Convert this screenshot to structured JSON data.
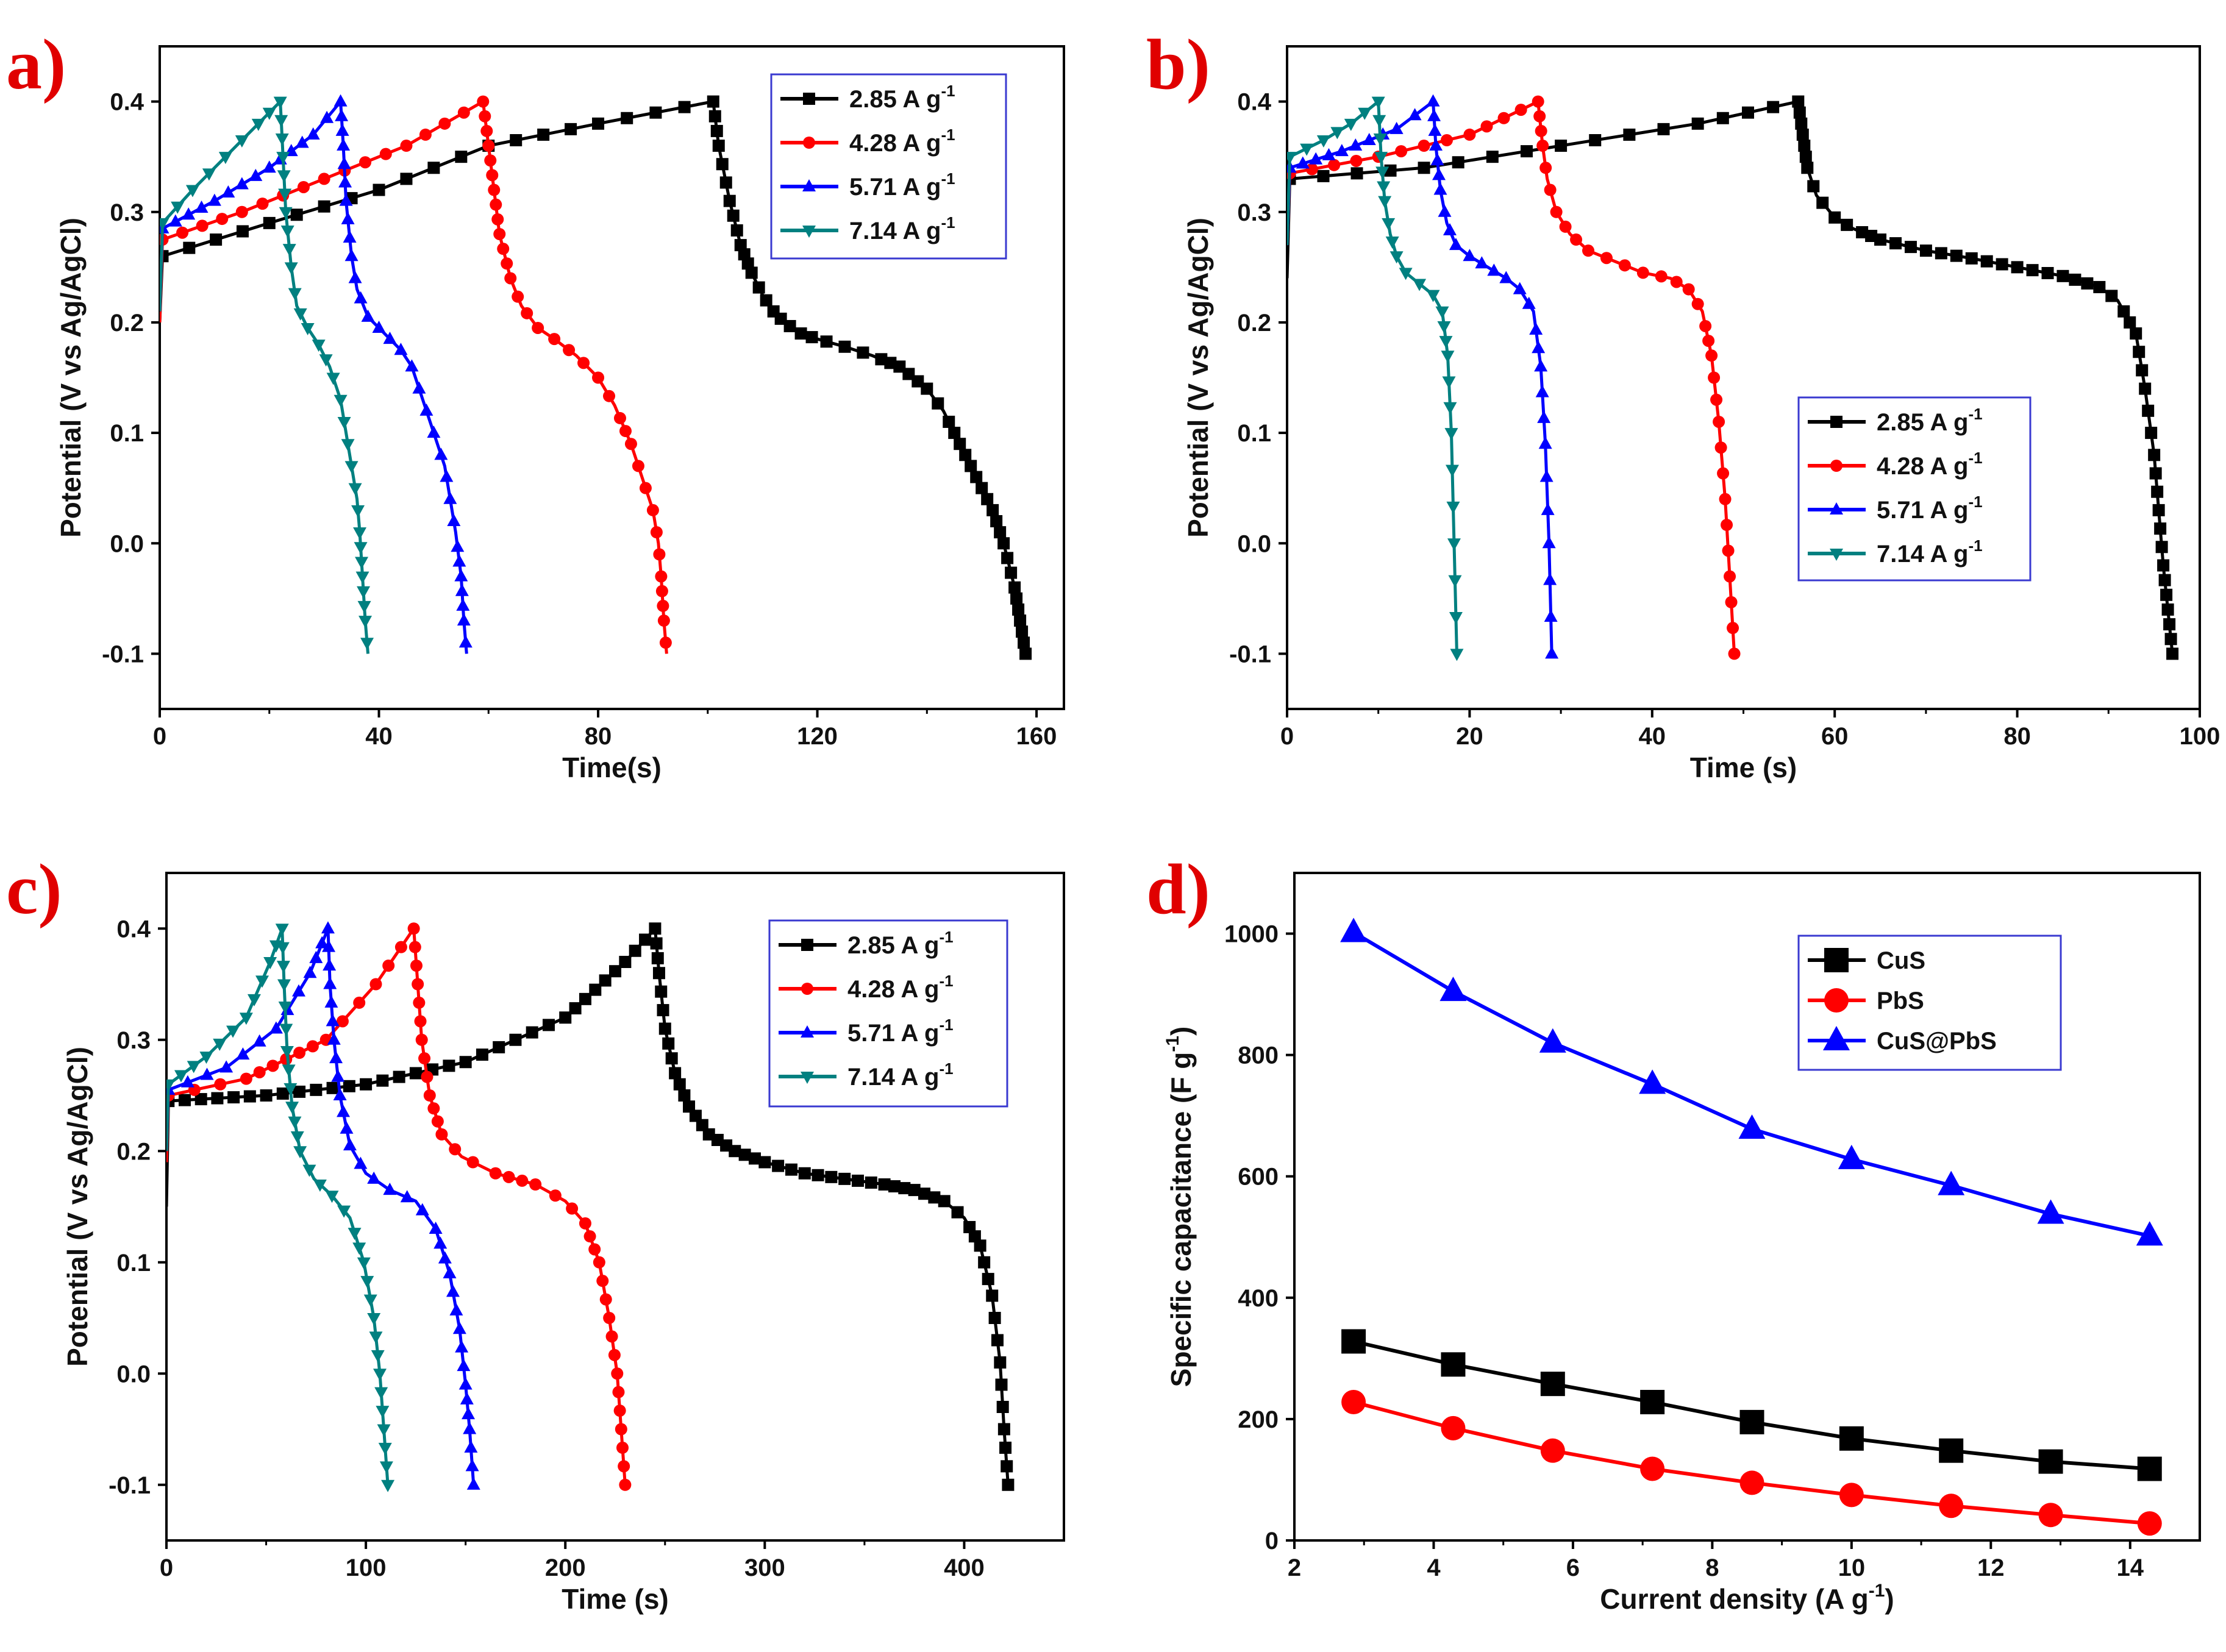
{
  "chart_data": [
    {
      "panel": "a)",
      "type": "line",
      "xlabel": "Time(s)",
      "ylabel": "Potential (V vs Ag/AgCl)",
      "xlim": [
        0,
        165
      ],
      "ylim": [
        -0.15,
        0.45
      ],
      "xticks": [
        0,
        40,
        80,
        120,
        160
      ],
      "yticks": [
        -0.1,
        0.0,
        0.1,
        0.2,
        0.3,
        0.4
      ],
      "legend_position": "top-right",
      "series": [
        {
          "name": "2.85 A g",
          "sup": "-1",
          "color": "#000000",
          "marker": "square",
          "charge_x": [
            0,
            0.5
          ],
          "charge_y": [
            0.2,
            0.26
          ],
          "charge2_x": [
            0.5,
            20,
            40,
            60,
            80,
            101
          ],
          "charge2_y": [
            0.26,
            0.29,
            0.32,
            0.36,
            0.38,
            0.4
          ],
          "discharge_x": [
            101,
            102,
            104,
            106,
            108,
            110,
            112,
            114,
            117,
            120,
            125,
            130,
            135,
            140,
            143,
            146,
            149,
            152,
            154,
            155,
            156,
            157,
            158
          ],
          "discharge_y": [
            0.4,
            0.36,
            0.31,
            0.27,
            0.245,
            0.225,
            0.21,
            0.2,
            0.19,
            0.185,
            0.178,
            0.17,
            0.16,
            0.14,
            0.12,
            0.09,
            0.06,
            0.03,
            0.0,
            -0.02,
            -0.04,
            -0.07,
            -0.1
          ]
        },
        {
          "name": "4.28 A g",
          "sup": "-1",
          "color": "#ff0000",
          "marker": "circle",
          "charge_x": [
            0,
            0.5
          ],
          "charge_y": [
            0.2,
            0.275
          ],
          "charge2_x": [
            0.5,
            15,
            30,
            45,
            59
          ],
          "charge2_y": [
            0.275,
            0.3,
            0.33,
            0.36,
            0.4
          ],
          "discharge_x": [
            59,
            60,
            61,
            62,
            64,
            66,
            69,
            72,
            76,
            80,
            83,
            86,
            88,
            90,
            91,
            91.5,
            92,
            92.5
          ],
          "discharge_y": [
            0.4,
            0.36,
            0.32,
            0.28,
            0.24,
            0.215,
            0.195,
            0.185,
            0.17,
            0.15,
            0.125,
            0.09,
            0.06,
            0.03,
            0.0,
            -0.03,
            -0.07,
            -0.1
          ]
        },
        {
          "name": "5.71 A g",
          "sup": "-1",
          "color": "#0000ff",
          "marker": "triangle-up",
          "charge_x": [
            0,
            0.5
          ],
          "charge_y": [
            0.21,
            0.285
          ],
          "charge2_x": [
            0.5,
            10,
            20,
            28,
            33
          ],
          "charge2_y": [
            0.285,
            0.31,
            0.34,
            0.37,
            0.4
          ],
          "discharge_x": [
            33,
            33.5,
            34,
            35,
            36,
            38,
            41,
            44,
            46,
            48,
            50,
            52,
            53,
            54,
            55,
            55.5,
            56
          ],
          "discharge_y": [
            0.4,
            0.36,
            0.31,
            0.26,
            0.23,
            0.205,
            0.19,
            0.175,
            0.16,
            0.13,
            0.1,
            0.07,
            0.04,
            0.01,
            -0.03,
            -0.07,
            -0.1
          ]
        },
        {
          "name": "7.14 A g",
          "sup": "-1",
          "color": "#008080",
          "marker": "triangle-down",
          "charge_x": [
            0,
            0.5
          ],
          "charge_y": [
            0.21,
            0.29
          ],
          "charge2_x": [
            0.5,
            6,
            12,
            18,
            22
          ],
          "charge2_y": [
            0.29,
            0.32,
            0.35,
            0.38,
            0.4
          ],
          "discharge_x": [
            22,
            22.5,
            23,
            24,
            25,
            27,
            29,
            31,
            33,
            34,
            35,
            36,
            36.5,
            37,
            37.5,
            38
          ],
          "discharge_y": [
            0.4,
            0.35,
            0.3,
            0.25,
            0.215,
            0.195,
            0.18,
            0.16,
            0.13,
            0.1,
            0.07,
            0.04,
            0.01,
            -0.03,
            -0.07,
            -0.1
          ]
        }
      ]
    },
    {
      "panel": "b)",
      "type": "line",
      "xlabel": "Time (s)",
      "ylabel": "Potential (V vs Ag/AgCl)",
      "xlim": [
        0,
        100
      ],
      "ylim": [
        -0.15,
        0.45
      ],
      "xticks": [
        0,
        20,
        40,
        60,
        80,
        100
      ],
      "yticks": [
        -0.1,
        0.0,
        0.1,
        0.2,
        0.3,
        0.4
      ],
      "legend_position": "middle-right",
      "series": [
        {
          "name": "2.85 A g",
          "sup": "-1",
          "color": "#000000",
          "marker": "square",
          "charge_x": [
            0,
            0.3
          ],
          "charge_y": [
            0.24,
            0.33
          ],
          "charge2_x": [
            0.3,
            15,
            30,
            45,
            56
          ],
          "charge2_y": [
            0.33,
            0.34,
            0.36,
            0.38,
            0.4
          ],
          "discharge_x": [
            56,
            56.5,
            57,
            58,
            60,
            62,
            65,
            70,
            75,
            80,
            85,
            89,
            91,
            93,
            94,
            95,
            95.5,
            96,
            96.5,
            97
          ],
          "discharge_y": [
            0.4,
            0.37,
            0.34,
            0.315,
            0.295,
            0.285,
            0.275,
            0.265,
            0.258,
            0.25,
            0.242,
            0.232,
            0.22,
            0.19,
            0.14,
            0.08,
            0.03,
            -0.02,
            -0.06,
            -0.1
          ]
        },
        {
          "name": "4.28 A g",
          "sup": "-1",
          "color": "#ff0000",
          "marker": "circle",
          "charge_x": [
            0,
            0.3
          ],
          "charge_y": [
            0.27,
            0.335
          ],
          "charge2_x": [
            0.3,
            10,
            20,
            27.5
          ],
          "charge2_y": [
            0.335,
            0.35,
            0.37,
            0.4
          ],
          "discharge_x": [
            27.5,
            28,
            28.5,
            29.5,
            31,
            33,
            36,
            39,
            42,
            44,
            45.5,
            46.5,
            47.3,
            48,
            48.5,
            49
          ],
          "discharge_y": [
            0.4,
            0.36,
            0.33,
            0.3,
            0.28,
            0.265,
            0.255,
            0.245,
            0.24,
            0.23,
            0.21,
            0.17,
            0.11,
            0.04,
            -0.03,
            -0.1
          ]
        },
        {
          "name": "5.71 A g",
          "sup": "-1",
          "color": "#0000ff",
          "marker": "triangle-up",
          "charge_x": [
            0,
            0.3
          ],
          "charge_y": [
            0.27,
            0.34
          ],
          "charge2_x": [
            0.3,
            6,
            12,
            16
          ],
          "charge2_y": [
            0.34,
            0.355,
            0.375,
            0.4
          ],
          "discharge_x": [
            16,
            16.3,
            16.8,
            17.5,
            18.5,
            20,
            22,
            24,
            25.5,
            27,
            27.8,
            28.3,
            28.7,
            29
          ],
          "discharge_y": [
            0.4,
            0.36,
            0.32,
            0.29,
            0.27,
            0.26,
            0.25,
            0.24,
            0.23,
            0.21,
            0.16,
            0.09,
            0.0,
            -0.1
          ]
        },
        {
          "name": "7.14 A g",
          "sup": "-1",
          "color": "#008080",
          "marker": "triangle-down",
          "charge_x": [
            0,
            0.3
          ],
          "charge_y": [
            0.27,
            0.35
          ],
          "charge2_x": [
            0.3,
            4,
            7,
            10
          ],
          "charge2_y": [
            0.35,
            0.365,
            0.38,
            0.4
          ],
          "discharge_x": [
            10,
            10.3,
            10.7,
            11.3,
            12,
            13,
            14.5,
            16,
            17,
            17.6,
            18,
            18.3,
            18.6
          ],
          "discharge_y": [
            0.4,
            0.35,
            0.31,
            0.28,
            0.26,
            0.245,
            0.235,
            0.225,
            0.21,
            0.17,
            0.1,
            0.0,
            -0.1
          ]
        }
      ]
    },
    {
      "panel": "c)",
      "type": "line",
      "xlabel": "Time (s)",
      "ylabel": "Potential (V vs Ag/AgCl)",
      "xlim": [
        0,
        450
      ],
      "ylim": [
        -0.15,
        0.45
      ],
      "xticks": [
        0,
        100,
        200,
        300,
        400
      ],
      "yticks": [
        -0.1,
        0.0,
        0.1,
        0.2,
        0.3,
        0.4
      ],
      "legend_position": "top-right",
      "series": [
        {
          "name": "2.85 A g",
          "sup": "-1",
          "color": "#000000",
          "marker": "square",
          "charge_x": [
            0,
            1
          ],
          "charge_y": [
            0.15,
            0.245
          ],
          "charge2_x": [
            1,
            50,
            100,
            150,
            200,
            230,
            245
          ],
          "charge2_y": [
            0.245,
            0.25,
            0.26,
            0.28,
            0.32,
            0.37,
            0.4
          ],
          "discharge_x": [
            245,
            247,
            250,
            255,
            262,
            272,
            285,
            300,
            320,
            340,
            360,
            375,
            390,
            400,
            408,
            414,
            418,
            420,
            422
          ],
          "discharge_y": [
            0.4,
            0.36,
            0.31,
            0.27,
            0.24,
            0.215,
            0.2,
            0.19,
            0.18,
            0.175,
            0.17,
            0.165,
            0.155,
            0.14,
            0.115,
            0.07,
            0.01,
            -0.05,
            -0.1
          ]
        },
        {
          "name": "4.28 A g",
          "sup": "-1",
          "color": "#ff0000",
          "marker": "circle",
          "charge_x": [
            0,
            1
          ],
          "charge_y": [
            0.19,
            0.25
          ],
          "charge2_x": [
            1,
            40,
            80,
            105,
            124
          ],
          "charge2_y": [
            0.25,
            0.265,
            0.3,
            0.35,
            0.4
          ],
          "discharge_x": [
            124,
            126,
            128,
            132,
            138,
            148,
            165,
            185,
            200,
            210,
            217,
            222,
            226,
            228,
            230
          ],
          "discharge_y": [
            0.4,
            0.35,
            0.3,
            0.25,
            0.215,
            0.195,
            0.18,
            0.17,
            0.155,
            0.135,
            0.1,
            0.05,
            0.0,
            -0.05,
            -0.1
          ]
        },
        {
          "name": "5.71 A g",
          "sup": "-1",
          "color": "#0000ff",
          "marker": "triangle-up",
          "charge_x": [
            0,
            1
          ],
          "charge_y": [
            0.2,
            0.255
          ],
          "charge2_x": [
            1,
            30,
            55,
            72,
            81
          ],
          "charge2_y": [
            0.255,
            0.275,
            0.31,
            0.36,
            0.4
          ],
          "discharge_x": [
            81,
            82,
            84,
            87,
            92,
            100,
            112,
            125,
            135,
            142,
            147,
            150,
            152,
            154
          ],
          "discharge_y": [
            0.4,
            0.35,
            0.3,
            0.25,
            0.205,
            0.18,
            0.165,
            0.155,
            0.13,
            0.09,
            0.04,
            -0.01,
            -0.05,
            -0.1
          ]
        },
        {
          "name": "7.14 A g",
          "sup": "-1",
          "color": "#008080",
          "marker": "triangle-down",
          "charge_x": [
            0,
            1
          ],
          "charge_y": [
            0.2,
            0.26
          ],
          "charge2_x": [
            1,
            20,
            40,
            52,
            58
          ],
          "charge2_y": [
            0.26,
            0.285,
            0.32,
            0.37,
            0.4
          ],
          "discharge_x": [
            58,
            59,
            60.5,
            63,
            67,
            74,
            83,
            92,
            99,
            104,
            107,
            109,
            111
          ],
          "discharge_y": [
            0.4,
            0.35,
            0.29,
            0.24,
            0.2,
            0.175,
            0.16,
            0.14,
            0.1,
            0.05,
            0.0,
            -0.05,
            -0.1
          ]
        }
      ]
    },
    {
      "panel": "d)",
      "type": "line",
      "xlabel": "Current density (A g",
      "xlabel_sup": "-1",
      "xlabel_end": ")",
      "ylabel": "Specific capacitance (F g",
      "ylabel_sup": "-1",
      "ylabel_end": ")",
      "xlim": [
        2,
        15
      ],
      "ylim": [
        0,
        1100
      ],
      "xticks": [
        2,
        4,
        6,
        8,
        10,
        12,
        14
      ],
      "yticks": [
        0,
        200,
        400,
        600,
        800,
        1000
      ],
      "legend_position": "top-right",
      "x": [
        2.85,
        4.28,
        5.71,
        7.14,
        8.57,
        10.0,
        11.43,
        12.86,
        14.28
      ],
      "series": [
        {
          "name": "CuS",
          "color": "#000000",
          "marker": "square",
          "values": [
            328,
            290,
            258,
            228,
            195,
            168,
            148,
            130,
            118
          ]
        },
        {
          "name": "PbS",
          "color": "#ff0000",
          "marker": "circle",
          "values": [
            228,
            185,
            148,
            118,
            95,
            75,
            57,
            42,
            28
          ]
        },
        {
          "name": "CuS@PbS",
          "color": "#0000ff",
          "marker": "triangle-up",
          "values": [
            1002,
            905,
            820,
            752,
            678,
            628,
            585,
            538,
            502
          ]
        }
      ]
    }
  ]
}
